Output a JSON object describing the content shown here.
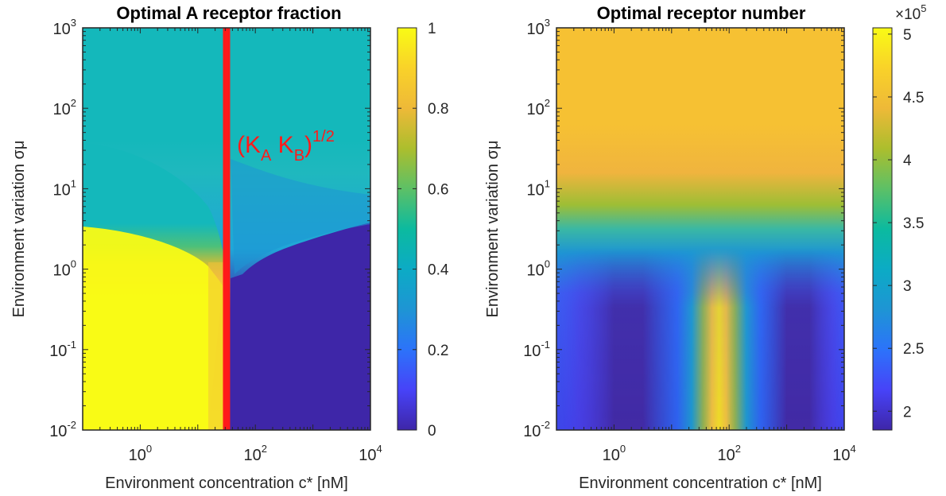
{
  "chart_data": [
    {
      "type": "heatmap",
      "title": "Optimal A receptor fraction",
      "xlabel": "Environment concentration c* [nM]",
      "ylabel": "Environment variation σμ",
      "x_scale": "log",
      "y_scale": "log",
      "xlim": [
        0.1,
        10000
      ],
      "ylim": [
        0.01,
        1000
      ],
      "x_ticks": [
        {
          "value": 1,
          "base": "10",
          "exp": "0"
        },
        {
          "value": 100,
          "base": "10",
          "exp": "2"
        },
        {
          "value": 10000,
          "base": "10",
          "exp": "4"
        }
      ],
      "y_ticks": [
        {
          "value": 0.01,
          "base": "10",
          "exp": "-2"
        },
        {
          "value": 0.1,
          "base": "10",
          "exp": "-1"
        },
        {
          "value": 1,
          "base": "10",
          "exp": "0"
        },
        {
          "value": 10,
          "base": "10",
          "exp": "1"
        },
        {
          "value": 100,
          "base": "10",
          "exp": "2"
        },
        {
          "value": 1000,
          "base": "10",
          "exp": "3"
        }
      ],
      "colorbar": {
        "range": [
          0,
          1
        ],
        "ticks": [
          "0",
          "0.2",
          "0.4",
          "0.6",
          "0.8",
          "1"
        ],
        "tick_values": [
          0,
          0.2,
          0.4,
          0.6,
          0.8,
          1
        ],
        "multiplier": ""
      },
      "annotation": {
        "text_main": "(K",
        "sub_a": "A",
        "text_mid": " K",
        "sub_b": "B",
        "text_close": ")",
        "sup": "1/2",
        "color": "#ff1a1a",
        "line_x": 31.6
      },
      "summary": {
        "low_variation_low_c": 1.0,
        "low_variation_high_c": 0.0,
        "high_variation": 0.5
      }
    },
    {
      "type": "heatmap",
      "title": "Optimal receptor number",
      "xlabel": "Environment concentration c* [nM]",
      "ylabel": "Environment variation σμ",
      "x_scale": "log",
      "y_scale": "log",
      "xlim": [
        0.1,
        10000
      ],
      "ylim": [
        0.01,
        1000
      ],
      "x_ticks": [
        {
          "value": 1,
          "base": "10",
          "exp": "0"
        },
        {
          "value": 100,
          "base": "10",
          "exp": "2"
        },
        {
          "value": 10000,
          "base": "10",
          "exp": "4"
        }
      ],
      "y_ticks": [
        {
          "value": 0.01,
          "base": "10",
          "exp": "-2"
        },
        {
          "value": 0.1,
          "base": "10",
          "exp": "-1"
        },
        {
          "value": 1,
          "base": "10",
          "exp": "0"
        },
        {
          "value": 10,
          "base": "10",
          "exp": "1"
        },
        {
          "value": 100,
          "base": "10",
          "exp": "2"
        },
        {
          "value": 1000,
          "base": "10",
          "exp": "3"
        }
      ],
      "colorbar": {
        "range": [
          1.85,
          5.05
        ],
        "ticks": [
          "2",
          "2.5",
          "3",
          "3.5",
          "4",
          "4.5",
          "5"
        ],
        "tick_values": [
          2,
          2.5,
          3,
          3.5,
          4,
          4.5,
          5
        ],
        "multiplier_base": "×10",
        "multiplier_exp": "5"
      },
      "summary": {
        "high_variation": 4.6,
        "low_variation_minima_at_c": [
          1,
          1000
        ],
        "low_variation_min": 1.9,
        "low_variation_peak_at_c": 31.6,
        "low_variation_peak": 5.0
      }
    }
  ],
  "colormap": [
    "#3e26a8",
    "#4743f8",
    "#2c73fa",
    "#1e95d4",
    "#0cabc5",
    "#0cba9f",
    "#5dc066",
    "#acbe2d",
    "#eeb938",
    "#f9d229",
    "#f9fb15"
  ]
}
